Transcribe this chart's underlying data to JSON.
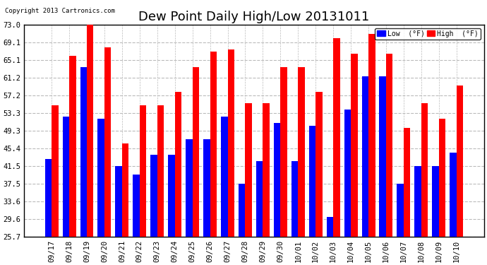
{
  "title": "Dew Point Daily High/Low 20131011",
  "copyright": "Copyright 2013 Cartronics.com",
  "dates": [
    "09/17",
    "09/18",
    "09/19",
    "09/20",
    "09/21",
    "09/22",
    "09/23",
    "09/24",
    "09/25",
    "09/26",
    "09/27",
    "09/28",
    "09/29",
    "09/30",
    "10/01",
    "10/02",
    "10/03",
    "10/04",
    "10/05",
    "10/06",
    "10/07",
    "10/08",
    "10/09",
    "10/10"
  ],
  "low_values": [
    43.0,
    52.5,
    63.5,
    52.0,
    41.5,
    39.5,
    44.0,
    44.0,
    47.5,
    47.5,
    52.5,
    37.5,
    42.5,
    51.0,
    42.5,
    50.5,
    30.0,
    54.0,
    61.5,
    61.5,
    37.5,
    41.5,
    41.5,
    44.5
  ],
  "high_values": [
    55.0,
    66.0,
    73.5,
    68.0,
    46.5,
    55.0,
    55.0,
    58.0,
    63.5,
    67.0,
    67.5,
    55.5,
    55.5,
    63.5,
    63.5,
    58.0,
    70.0,
    66.5,
    71.0,
    66.5,
    50.0,
    55.5,
    52.0,
    59.5
  ],
  "low_color": "#0000ff",
  "high_color": "#ff0000",
  "bg_color": "#ffffff",
  "plot_bg_color": "#ffffff",
  "grid_color": "#bbbbbb",
  "yticks": [
    25.7,
    29.6,
    33.6,
    37.5,
    41.5,
    45.4,
    49.3,
    53.3,
    57.2,
    61.2,
    65.1,
    69.1,
    73.0
  ],
  "ylim": [
    25.7,
    73.0
  ],
  "bar_width": 0.38,
  "title_fontsize": 13,
  "legend_low_label": "Low  (°F)",
  "legend_high_label": "High  (°F)"
}
